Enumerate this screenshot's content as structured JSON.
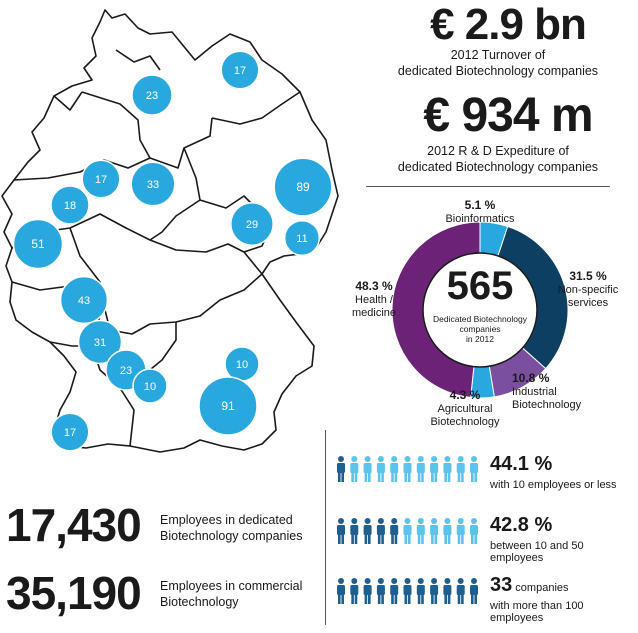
{
  "kpis": {
    "turnover_value": "€ 2.9 bn",
    "turnover_line1": "2012 Turnover of",
    "turnover_line2": "dedicated Biotechnology companies",
    "rd_value": "€ 934 m",
    "rd_line1": "2012 R & D Expediture of",
    "rd_line2": "dedicated Biotechnology companies"
  },
  "chart_data": [
    {
      "type": "bubble-map",
      "points": [
        {
          "label": "17",
          "value": 17
        },
        {
          "label": "23",
          "value": 23
        },
        {
          "label": "17",
          "value": 17
        },
        {
          "label": "33",
          "value": 33
        },
        {
          "label": "89",
          "value": 89
        },
        {
          "label": "18",
          "value": 18
        },
        {
          "label": "29",
          "value": 29
        },
        {
          "label": "11",
          "value": 11
        },
        {
          "label": "51",
          "value": 51
        },
        {
          "label": "43",
          "value": 43
        },
        {
          "label": "31",
          "value": 31
        },
        {
          "label": "23",
          "value": 23
        },
        {
          "label": "10",
          "value": 10
        },
        {
          "label": "10",
          "value": 10
        },
        {
          "label": "91",
          "value": 91
        },
        {
          "label": "17",
          "value": 17
        }
      ],
      "colors": {
        "bubble": "#29a8e0",
        "border": "#1a1a1a"
      }
    },
    {
      "type": "pie",
      "center_value": "565",
      "center_line1": "Dedicated Biotechnology",
      "center_line2": "companies",
      "center_line3": "in 2012",
      "slices": [
        {
          "pct": "5.1 %",
          "value": 5.1,
          "name_line1": "Bioinformatics",
          "name_line2": "",
          "color": "#29a8e0"
        },
        {
          "pct": "31.5 %",
          "value": 31.5,
          "name_line1": "Non-specific",
          "name_line2": "services",
          "color": "#0d3f63"
        },
        {
          "pct": "10.8 %",
          "value": 10.8,
          "name_line1": "Industrial",
          "name_line2": "Biotechnology",
          "color": "#7b4fa0"
        },
        {
          "pct": "4.3 %",
          "value": 4.3,
          "name_line1": "Agricultural",
          "name_line2": "Biotechnology",
          "color": "#29a8e0"
        },
        {
          "pct": "48.3 %",
          "value": 48.3,
          "name_line1": "Health /",
          "name_line2": "medicine",
          "color": "#6b2277"
        }
      ]
    },
    {
      "type": "pictogram",
      "rows": [
        {
          "pct": "44.1 %",
          "text": "with 10 employees or less",
          "dark_count": 1,
          "total": 11
        },
        {
          "pct": "42.8 %",
          "text": "between 10 and 50 employees",
          "dark_count": 5,
          "total": 11
        },
        {
          "pct": "33",
          "pct_suffix": " companies",
          "text": "with more than 100 employees",
          "dark_count": 11,
          "total": 11
        }
      ],
      "colors": {
        "dark": "#1f5f8f",
        "light": "#5cc3ea"
      }
    }
  ],
  "employees": {
    "dedicated_value": "17,430",
    "dedicated_line1": "Employees in dedicated",
    "dedicated_line2": "Biotechnology companies",
    "commercial_value": "35,190",
    "commercial_line1": "Employees in commercial",
    "commercial_line2": "Biotechnology"
  }
}
